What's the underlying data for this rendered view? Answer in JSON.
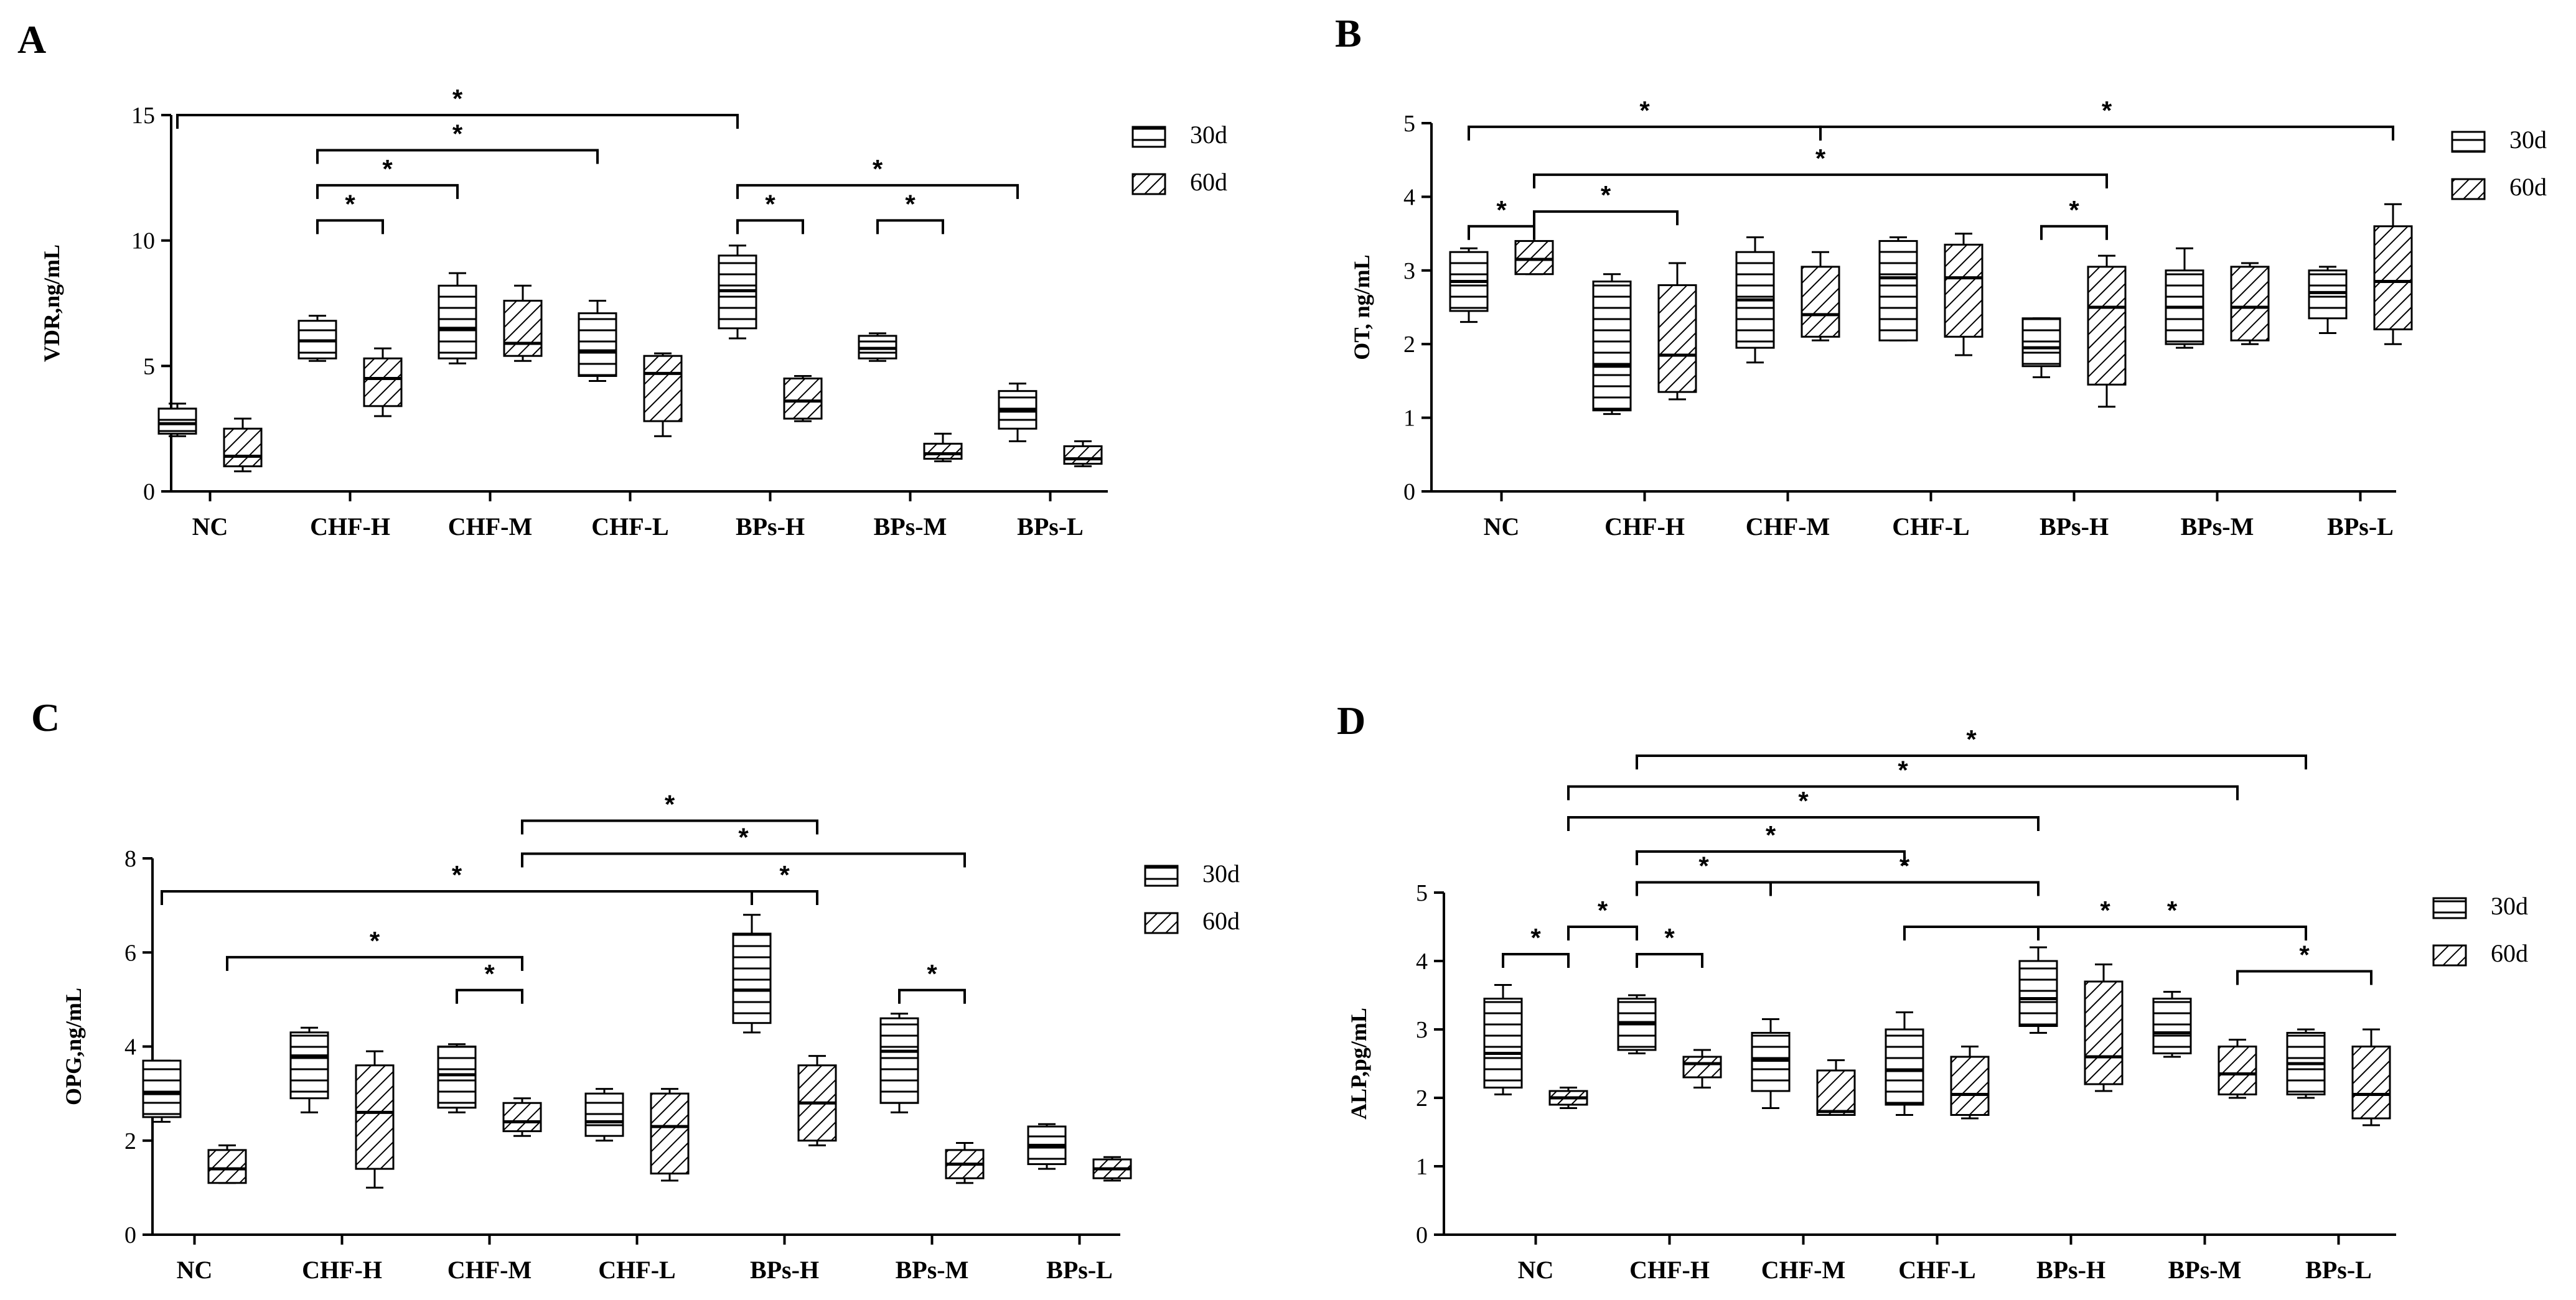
{
  "legend": {
    "series_a": "30d",
    "series_b": "60d"
  },
  "chart_data": [
    {
      "type": "box",
      "panel": "A",
      "ylabel": "VDR,ng/mL",
      "ylim": [
        0,
        15
      ],
      "yticks": [
        "0",
        "5",
        "10",
        "15"
      ],
      "categories": [
        "NC",
        "CHF-H",
        "CHF-M",
        "CHF-L",
        "BPs-H",
        "BPs-M",
        "BPs-L"
      ],
      "series": [
        {
          "name": "30d",
          "boxes": [
            {
              "min": 2.2,
              "q1": 2.3,
              "median": 2.7,
              "q3": 3.3,
              "max": 3.5
            },
            {
              "min": 5.2,
              "q1": 5.3,
              "median": 6.0,
              "q3": 6.8,
              "max": 7.0
            },
            {
              "min": 5.1,
              "q1": 5.3,
              "median": 6.5,
              "q3": 8.2,
              "max": 8.7
            },
            {
              "min": 4.4,
              "q1": 4.6,
              "median": 5.6,
              "q3": 7.1,
              "max": 7.6
            },
            {
              "min": 6.1,
              "q1": 6.5,
              "median": 8.0,
              "q3": 9.4,
              "max": 9.8
            },
            {
              "min": 5.2,
              "q1": 5.3,
              "median": 5.7,
              "q3": 6.2,
              "max": 6.3
            },
            {
              "min": 2.0,
              "q1": 2.5,
              "median": 3.2,
              "q3": 4.0,
              "max": 4.3
            }
          ]
        },
        {
          "name": "60d",
          "boxes": [
            {
              "min": 0.8,
              "q1": 1.0,
              "median": 1.4,
              "q3": 2.5,
              "max": 2.9
            },
            {
              "min": 3.0,
              "q1": 3.4,
              "median": 4.5,
              "q3": 5.3,
              "max": 5.7
            },
            {
              "min": 5.2,
              "q1": 5.4,
              "median": 5.9,
              "q3": 7.6,
              "max": 8.2
            },
            {
              "min": 2.2,
              "q1": 2.8,
              "median": 4.7,
              "q3": 5.4,
              "max": 5.5
            },
            {
              "min": 2.8,
              "q1": 2.9,
              "median": 3.6,
              "q3": 4.5,
              "max": 4.6
            },
            {
              "min": 1.2,
              "q1": 1.3,
              "median": 1.5,
              "q3": 1.9,
              "max": 2.3
            },
            {
              "min": 1.0,
              "q1": 1.1,
              "median": 1.3,
              "q3": 1.8,
              "max": 2.0
            }
          ]
        }
      ],
      "significance": [
        {
          "from": [
            0,
            0
          ],
          "to": [
            4,
            0
          ],
          "y": 15.0,
          "label": "*"
        },
        {
          "from": [
            1,
            0
          ],
          "to": [
            3,
            0
          ],
          "y": 13.6,
          "label": "*"
        },
        {
          "from": [
            1,
            0
          ],
          "to": [
            2,
            0
          ],
          "y": 12.2,
          "label": "*"
        },
        {
          "from": [
            1,
            0
          ],
          "to": [
            1,
            1
          ],
          "y": 10.8,
          "label": "*"
        },
        {
          "from": [
            4,
            0
          ],
          "to": [
            6,
            0
          ],
          "y": 12.2,
          "label": "*"
        },
        {
          "from": [
            4,
            0
          ],
          "to": [
            4,
            1
          ],
          "y": 10.8,
          "label": "*"
        },
        {
          "from": [
            5,
            0
          ],
          "to": [
            5,
            1
          ],
          "y": 10.8,
          "label": "*"
        }
      ]
    },
    {
      "type": "box",
      "panel": "B",
      "ylabel": "OT, ng/mL",
      "ylim": [
        0,
        5
      ],
      "yticks": [
        "0",
        "1",
        "2",
        "3",
        "4",
        "5"
      ],
      "categories": [
        "NC",
        "CHF-H",
        "CHF-M",
        "CHF-L",
        "BPs-H",
        "BPs-M",
        "BPs-L"
      ],
      "series": [
        {
          "name": "30d",
          "boxes": [
            {
              "min": 2.3,
              "q1": 2.45,
              "median": 2.85,
              "q3": 3.25,
              "max": 3.3
            },
            {
              "min": 1.05,
              "q1": 1.1,
              "median": 1.7,
              "q3": 2.85,
              "max": 2.95
            },
            {
              "min": 1.75,
              "q1": 1.95,
              "median": 2.6,
              "q3": 3.25,
              "max": 3.45
            },
            {
              "min": 2.05,
              "q1": 2.05,
              "median": 2.9,
              "q3": 3.4,
              "max": 3.45
            },
            {
              "min": 1.55,
              "q1": 1.7,
              "median": 1.95,
              "q3": 2.35,
              "max": 2.35
            },
            {
              "min": 1.95,
              "q1": 2.0,
              "median": 2.5,
              "q3": 3.0,
              "max": 3.3
            },
            {
              "min": 2.15,
              "q1": 2.35,
              "median": 2.7,
              "q3": 3.0,
              "max": 3.05
            }
          ]
        },
        {
          "name": "60d",
          "boxes": [
            {
              "min": 2.95,
              "q1": 2.95,
              "median": 3.15,
              "q3": 3.4,
              "max": 3.4
            },
            {
              "min": 1.25,
              "q1": 1.35,
              "median": 1.85,
              "q3": 2.8,
              "max": 3.1
            },
            {
              "min": 2.05,
              "q1": 2.1,
              "median": 2.4,
              "q3": 3.05,
              "max": 3.25
            },
            {
              "min": 1.85,
              "q1": 2.1,
              "median": 2.9,
              "q3": 3.35,
              "max": 3.5
            },
            {
              "min": 1.15,
              "q1": 1.45,
              "median": 2.5,
              "q3": 3.05,
              "max": 3.2
            },
            {
              "min": 2.0,
              "q1": 2.05,
              "median": 2.5,
              "q3": 3.05,
              "max": 3.1
            },
            {
              "min": 2.0,
              "q1": 2.2,
              "median": 2.85,
              "q3": 3.6,
              "max": 3.9
            }
          ]
        }
      ],
      "significance": [
        {
          "from": [
            0,
            0
          ],
          "to": [
            2,
            1
          ],
          "y": 4.95,
          "label": "*"
        },
        {
          "from": [
            2,
            1
          ],
          "to": [
            6,
            1
          ],
          "y": 4.95,
          "label": "*"
        },
        {
          "from": [
            0,
            1
          ],
          "to": [
            4,
            1
          ],
          "y": 4.3,
          "label": "*"
        },
        {
          "from": [
            0,
            1
          ],
          "to": [
            1,
            1
          ],
          "y": 3.8,
          "label": "*"
        },
        {
          "from": [
            0,
            0
          ],
          "to": [
            0,
            1
          ],
          "y": 3.6,
          "label": "*"
        },
        {
          "from": [
            4,
            0
          ],
          "to": [
            4,
            1
          ],
          "y": 3.6,
          "label": "*"
        }
      ]
    },
    {
      "type": "box",
      "panel": "C",
      "ylabel": "OPG,ng/mL",
      "ylim": [
        0,
        8
      ],
      "yticks": [
        "0",
        "2",
        "4",
        "6",
        "8"
      ],
      "categories": [
        "NC",
        "CHF-H",
        "CHF-M",
        "CHF-L",
        "BPs-H",
        "BPs-M",
        "BPs-L"
      ],
      "series": [
        {
          "name": "30d",
          "boxes": [
            {
              "min": 2.4,
              "q1": 2.5,
              "median": 3.0,
              "q3": 3.7,
              "max": 3.7
            },
            {
              "min": 2.6,
              "q1": 2.9,
              "median": 3.8,
              "q3": 4.3,
              "max": 4.4
            },
            {
              "min": 2.6,
              "q1": 2.7,
              "median": 3.4,
              "q3": 4.0,
              "max": 4.05
            },
            {
              "min": 2.0,
              "q1": 2.1,
              "median": 2.4,
              "q3": 3.0,
              "max": 3.1
            },
            {
              "min": 4.3,
              "q1": 4.5,
              "median": 5.2,
              "q3": 6.4,
              "max": 6.8
            },
            {
              "min": 2.6,
              "q1": 2.8,
              "median": 3.9,
              "q3": 4.6,
              "max": 4.7
            },
            {
              "min": 1.4,
              "q1": 1.5,
              "median": 1.9,
              "q3": 2.3,
              "max": 2.35
            }
          ]
        },
        {
          "name": "60d",
          "boxes": [
            {
              "min": 1.1,
              "q1": 1.1,
              "median": 1.4,
              "q3": 1.8,
              "max": 1.9
            },
            {
              "min": 1.0,
              "q1": 1.4,
              "median": 2.6,
              "q3": 3.6,
              "max": 3.9
            },
            {
              "min": 2.1,
              "q1": 2.2,
              "median": 2.4,
              "q3": 2.8,
              "max": 2.9
            },
            {
              "min": 1.15,
              "q1": 1.3,
              "median": 2.3,
              "q3": 3.0,
              "max": 3.1
            },
            {
              "min": 1.9,
              "q1": 2.0,
              "median": 2.8,
              "q3": 3.6,
              "max": 3.8
            },
            {
              "min": 1.1,
              "q1": 1.2,
              "median": 1.5,
              "q3": 1.8,
              "max": 1.95
            },
            {
              "min": 1.15,
              "q1": 1.2,
              "median": 1.4,
              "q3": 1.6,
              "max": 1.65
            }
          ]
        }
      ],
      "significance": [
        {
          "from": [
            2,
            1
          ],
          "to": [
            4,
            1
          ],
          "y": 8.8,
          "label": "*"
        },
        {
          "from": [
            2,
            1
          ],
          "to": [
            5,
            1
          ],
          "y": 8.1,
          "label": "*"
        },
        {
          "from": [
            0,
            0
          ],
          "to": [
            4,
            0
          ],
          "y": 7.3,
          "label": "*"
        },
        {
          "from": [
            4,
            0
          ],
          "to": [
            4,
            1
          ],
          "y": 7.3,
          "label": "*"
        },
        {
          "from": [
            0,
            1
          ],
          "to": [
            2,
            1
          ],
          "y": 5.9,
          "label": "*"
        },
        {
          "from": [
            2,
            0
          ],
          "to": [
            2,
            1
          ],
          "y": 5.2,
          "label": "*"
        },
        {
          "from": [
            5,
            0
          ],
          "to": [
            5,
            1
          ],
          "y": 5.2,
          "label": "*"
        }
      ]
    },
    {
      "type": "box",
      "panel": "D",
      "ylabel": "ALP,pg/mL",
      "ylim": [
        0,
        5
      ],
      "yticks": [
        "0",
        "1",
        "2",
        "3",
        "4",
        "5"
      ],
      "categories": [
        "NC",
        "CHF-H",
        "CHF-M",
        "CHF-L",
        "BPs-H",
        "BPs-M",
        "BPs-L"
      ],
      "series": [
        {
          "name": "30d",
          "boxes": [
            {
              "min": 2.05,
              "q1": 2.15,
              "median": 2.65,
              "q3": 3.45,
              "max": 3.65
            },
            {
              "min": 2.65,
              "q1": 2.7,
              "median": 3.1,
              "q3": 3.45,
              "max": 3.5
            },
            {
              "min": 1.85,
              "q1": 2.1,
              "median": 2.55,
              "q3": 2.95,
              "max": 3.15
            },
            {
              "min": 1.75,
              "q1": 1.9,
              "median": 2.4,
              "q3": 3.0,
              "max": 3.25
            },
            {
              "min": 2.95,
              "q1": 3.05,
              "median": 3.45,
              "q3": 4.0,
              "max": 4.2
            },
            {
              "min": 2.6,
              "q1": 2.65,
              "median": 2.95,
              "q3": 3.45,
              "max": 3.55
            },
            {
              "min": 2.0,
              "q1": 2.05,
              "median": 2.5,
              "q3": 2.95,
              "max": 3.0
            }
          ]
        },
        {
          "name": "60d",
          "boxes": [
            {
              "min": 1.85,
              "q1": 1.9,
              "median": 2.0,
              "q3": 2.1,
              "max": 2.15
            },
            {
              "min": 2.15,
              "q1": 2.3,
              "median": 2.5,
              "q3": 2.6,
              "max": 2.7
            },
            {
              "min": 1.75,
              "q1": 1.75,
              "median": 1.8,
              "q3": 2.4,
              "max": 2.55
            },
            {
              "min": 1.7,
              "q1": 1.75,
              "median": 2.05,
              "q3": 2.6,
              "max": 2.75
            },
            {
              "min": 2.1,
              "q1": 2.2,
              "median": 2.6,
              "q3": 3.7,
              "max": 3.95
            },
            {
              "min": 2.0,
              "q1": 2.05,
              "median": 2.35,
              "q3": 2.75,
              "max": 2.85
            },
            {
              "min": 1.6,
              "q1": 1.7,
              "median": 2.05,
              "q3": 2.75,
              "max": 3.0
            }
          ]
        }
      ],
      "significance": [
        {
          "from": [
            1,
            0
          ],
          "to": [
            6,
            0
          ],
          "y": 7.0,
          "label": "*"
        },
        {
          "from": [
            0,
            1
          ],
          "to": [
            5,
            1
          ],
          "y": 6.55,
          "label": "*"
        },
        {
          "from": [
            0,
            1
          ],
          "to": [
            4,
            0
          ],
          "y": 6.1,
          "label": "*"
        },
        {
          "from": [
            1,
            0
          ],
          "to": [
            3,
            0
          ],
          "y": 5.6,
          "label": "*"
        },
        {
          "from": [
            1,
            0
          ],
          "to": [
            2,
            0
          ],
          "y": 5.15,
          "label": "*"
        },
        {
          "from": [
            2,
            0
          ],
          "to": [
            4,
            0
          ],
          "y": 5.15,
          "label": "*"
        },
        {
          "from": [
            0,
            1
          ],
          "to": [
            1,
            0
          ],
          "y": 4.5,
          "label": "*"
        },
        {
          "from": [
            3,
            0
          ],
          "to": [
            6,
            0
          ],
          "y": 4.5,
          "label": "*"
        },
        {
          "from": [
            4,
            0
          ],
          "to": [
            6,
            0
          ],
          "y": 4.5,
          "label": "*"
        },
        {
          "from": [
            0,
            0
          ],
          "to": [
            0,
            1
          ],
          "y": 4.1,
          "label": "*"
        },
        {
          "from": [
            1,
            0
          ],
          "to": [
            1,
            1
          ],
          "y": 4.1,
          "label": "*"
        },
        {
          "from": [
            5,
            1
          ],
          "to": [
            6,
            1
          ],
          "y": 3.85,
          "label": "*"
        }
      ]
    }
  ]
}
